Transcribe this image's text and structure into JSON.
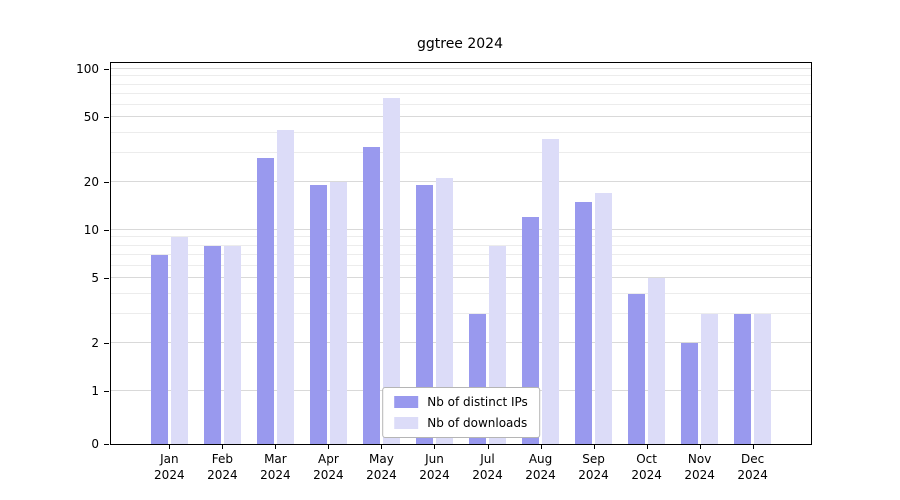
{
  "title": "ggtree 2024",
  "chart_data": {
    "type": "bar",
    "title": "ggtree 2024",
    "categories": [
      "Jan",
      "Feb",
      "Mar",
      "Apr",
      "May",
      "Jun",
      "Jul",
      "Aug",
      "Sep",
      "Oct",
      "Nov",
      "Dec"
    ],
    "x_sublabel": "2024",
    "series": [
      {
        "name": "Nb of distinct IPs",
        "color": "#9999ee",
        "values": [
          7,
          8,
          28,
          19,
          33,
          19,
          3,
          12,
          15,
          4,
          2,
          3
        ]
      },
      {
        "name": "Nb of downloads",
        "color": "#dcdcf8",
        "values": [
          9,
          8,
          42,
          20,
          66,
          21,
          8,
          37,
          17,
          5,
          3,
          3
        ]
      }
    ],
    "yscale": "symlog",
    "ylim": [
      0,
      100
    ],
    "yticks": [
      0,
      1,
      2,
      5,
      10,
      20,
      50,
      100
    ],
    "minor_yticks": [
      3,
      4,
      6,
      7,
      8,
      9,
      30,
      40,
      60,
      70,
      80,
      90
    ],
    "grid": "horizontal",
    "legend_position": "lower center"
  },
  "colors": {
    "ips_bar": "#9999ee",
    "downloads_bar": "#dcdcf8",
    "gridline_major": "#d9d9d9",
    "gridline_minor": "#ececec",
    "axis": "#000000",
    "legend_border": "#b5b5b5",
    "background": "#ffffff"
  }
}
